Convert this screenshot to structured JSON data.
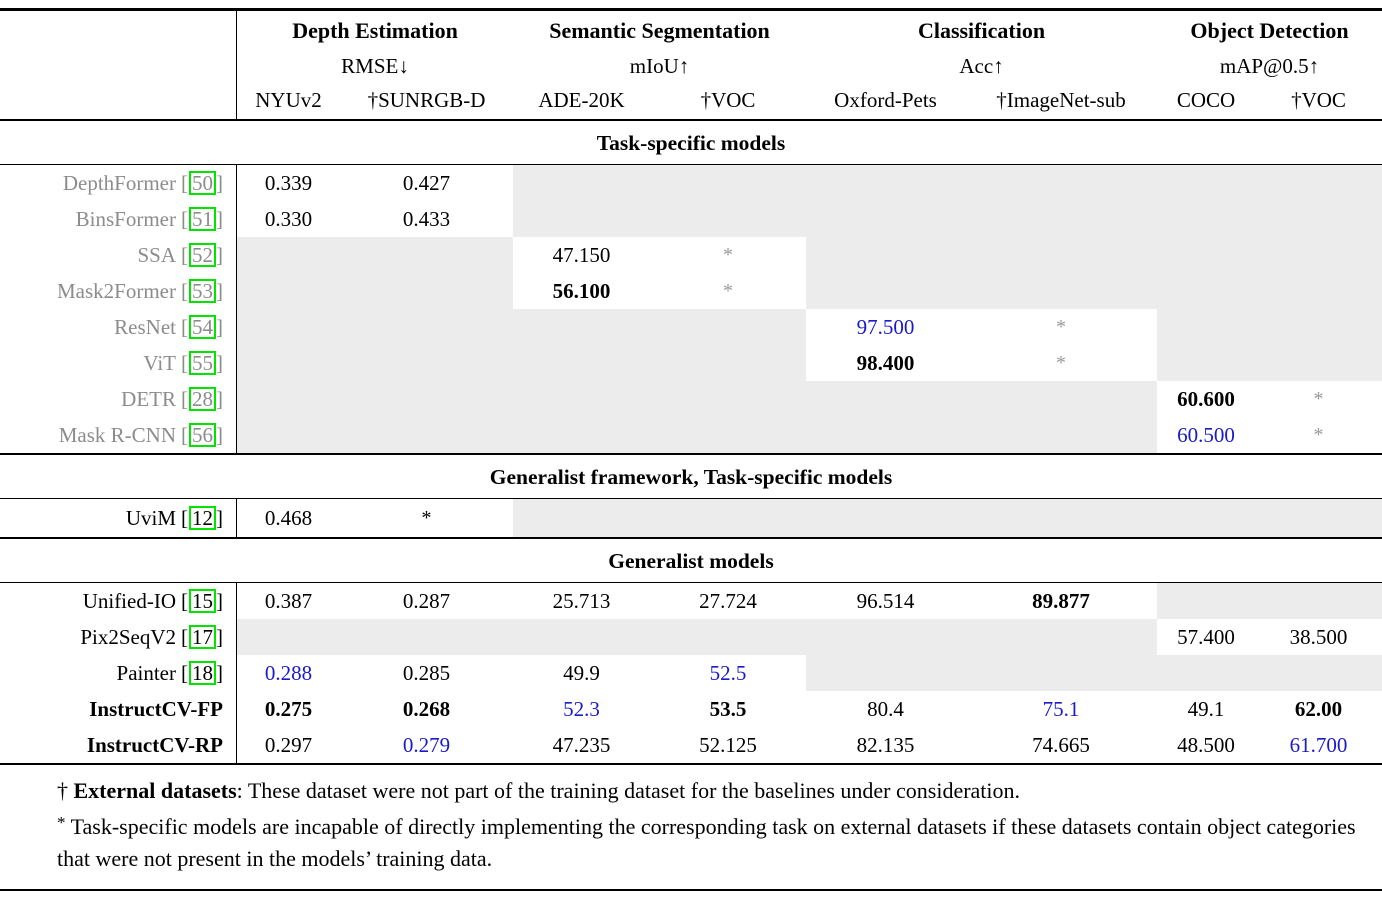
{
  "header": {
    "groups": [
      {
        "task": "Depth Estimation",
        "metric": "RMSE↓",
        "datasets": [
          "NYUv2",
          "†SUNRGB-D"
        ]
      },
      {
        "task": "Semantic Segmentation",
        "metric": "mIoU↑",
        "datasets": [
          "ADE-20K",
          "†VOC"
        ]
      },
      {
        "task": "Classification",
        "metric": "Acc↑",
        "datasets": [
          "Oxford-Pets",
          "†ImageNet-sub"
        ]
      },
      {
        "task": "Object Detection",
        "metric": "mAP@0.5↑",
        "datasets": [
          "COCO",
          "†VOC"
        ]
      }
    ]
  },
  "citation_brackets": {
    "open": "[",
    "close": "]"
  },
  "sections": [
    {
      "title": "Task-specific models",
      "rows": [
        {
          "model": "DepthFormer",
          "cite": "50",
          "cells": [
            "0.339",
            "0.427",
            "",
            "",
            "",
            "",
            "",
            ""
          ]
        },
        {
          "model": "BinsFormer",
          "cite": "51",
          "cells": [
            "0.330",
            "0.433",
            "",
            "",
            "",
            "",
            "",
            ""
          ]
        },
        {
          "model": "SSA",
          "cite": "52",
          "cells": [
            "",
            "",
            "47.150",
            "*",
            "",
            "",
            "",
            ""
          ]
        },
        {
          "model": "Mask2Former",
          "cite": "53",
          "cells": [
            "",
            "",
            "56.100",
            "*",
            "",
            "",
            "",
            ""
          ]
        },
        {
          "model": "ResNet",
          "cite": "54",
          "cells": [
            "",
            "",
            "",
            "",
            "97.500",
            "*",
            "",
            ""
          ]
        },
        {
          "model": "ViT",
          "cite": "55",
          "cells": [
            "",
            "",
            "",
            "",
            "98.400",
            "*",
            "",
            ""
          ]
        },
        {
          "model": "DETR",
          "cite": "28",
          "cells": [
            "",
            "",
            "",
            "",
            "",
            "",
            "60.600",
            "*"
          ]
        },
        {
          "model": "Mask R-CNN",
          "cite": "56",
          "cells": [
            "",
            "",
            "",
            "",
            "",
            "",
            "60.500",
            "*"
          ]
        }
      ]
    },
    {
      "title": "Generalist framework, Task-specific models",
      "rows": [
        {
          "model": "UviM",
          "cite": "12",
          "cells": [
            "0.468",
            "*",
            "",
            "",
            "",
            "",
            "",
            ""
          ]
        }
      ]
    },
    {
      "title": "Generalist models",
      "rows": [
        {
          "model": "Unified-IO",
          "cite": "15",
          "cells": [
            "0.387",
            "0.287",
            "25.713",
            "27.724",
            "96.514",
            "89.877",
            "",
            ""
          ]
        },
        {
          "model": "Pix2SeqV2",
          "cite": "17",
          "cells": [
            "",
            "",
            "",
            "",
            "",
            "",
            "57.400",
            "38.500"
          ]
        },
        {
          "model": "Painter",
          "cite": "18",
          "cells": [
            "0.288",
            "0.285",
            "49.9",
            "52.5",
            "",
            "",
            "",
            ""
          ]
        },
        {
          "model": "InstructCV-FP",
          "cite": "",
          "cells": [
            "0.275",
            "0.268",
            "52.3",
            "53.5",
            "80.4",
            "75.1",
            "49.1",
            "62.00"
          ]
        },
        {
          "model": "InstructCV-RP",
          "cite": "",
          "cells": [
            "0.297",
            "0.279",
            "47.235",
            "52.125",
            "82.135",
            "74.665",
            "48.500",
            "61.700"
          ]
        }
      ]
    }
  ],
  "footnotes": {
    "f1_marker": "†",
    "f1_bold": "External datasets",
    "f1_rest": ": These dataset were not part of the training dataset for the baselines under consideration.",
    "f2_marker": "*",
    "f2_text": "Task-specific models are incapable of directly implementing the corresponding task on external datasets if these datasets contain object categories that were not present in the models’ training data."
  },
  "colors": {
    "highlight_blue": "#1a1ac8",
    "citation_green": "#00e400",
    "label_gray": "#8c8c8c",
    "cell_shade": "#ececec"
  }
}
